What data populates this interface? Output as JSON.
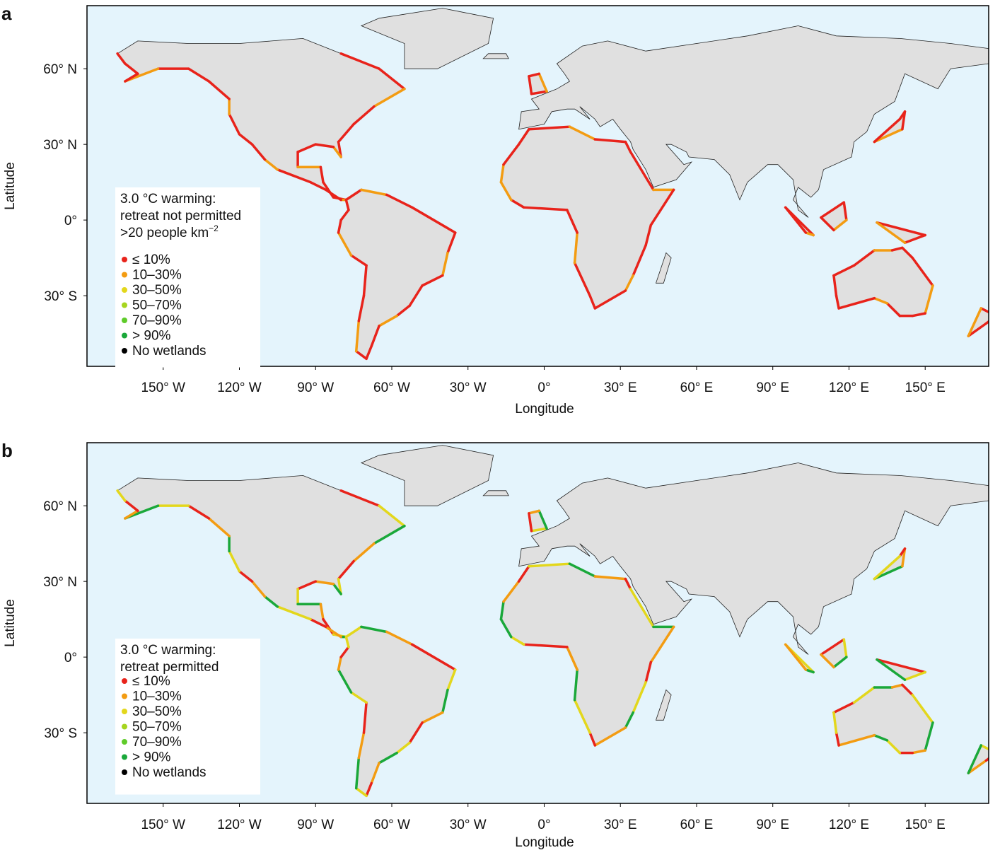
{
  "panels": [
    {
      "label": "a",
      "xlabel": "Longitude",
      "ylabel": "Latitude",
      "xlim": [
        -180,
        175
      ],
      "ylim": [
        -58,
        85
      ],
      "xticks": [
        {
          "value": -150,
          "label": "150° W"
        },
        {
          "value": -120,
          "label": "120° W"
        },
        {
          "value": -90,
          "label": "90° W"
        },
        {
          "value": -60,
          "label": "60° W"
        },
        {
          "value": -30,
          "label": "30° W"
        },
        {
          "value": 0,
          "label": "0°"
        },
        {
          "value": 30,
          "label": "30° E"
        },
        {
          "value": 60,
          "label": "60° E"
        },
        {
          "value": 90,
          "label": "90° E"
        },
        {
          "value": 120,
          "label": "120° E"
        },
        {
          "value": 150,
          "label": "150° E"
        }
      ],
      "yticks": [
        {
          "value": 60,
          "label": "60° N"
        },
        {
          "value": 30,
          "label": "30° N"
        },
        {
          "value": 0,
          "label": "0°"
        },
        {
          "value": -30,
          "label": "30° S"
        }
      ],
      "legend": {
        "title": [
          {
            "text": "3.0 °C warming:"
          },
          {
            "text": "retreat not permitted"
          },
          {
            "text": ">20 people km",
            "sup": "−2"
          }
        ],
        "items": [
          {
            "label": "≤ 10%",
            "color": "#e8231b"
          },
          {
            "label": "10–30%",
            "color": "#f39c12"
          },
          {
            "label": "30–50%",
            "color": "#e3d71c"
          },
          {
            "label": "50–70%",
            "color": "#a6d51f"
          },
          {
            "label": "70–90%",
            "color": "#5fcb2a"
          },
          {
            "label": "> 90%",
            "color": "#1aa83a"
          },
          {
            "label": "No wetlands",
            "color": "#000000"
          }
        ]
      }
    },
    {
      "label": "b",
      "xlabel": "Longitude",
      "ylabel": "Latitude",
      "xlim": [
        -180,
        175
      ],
      "ylim": [
        -58,
        85
      ],
      "xticks": [
        {
          "value": -150,
          "label": "150° W"
        },
        {
          "value": -120,
          "label": "120° W"
        },
        {
          "value": -90,
          "label": "90° W"
        },
        {
          "value": -60,
          "label": "60° W"
        },
        {
          "value": -30,
          "label": "30° W"
        },
        {
          "value": 0,
          "label": "0°"
        },
        {
          "value": 30,
          "label": "30° E"
        },
        {
          "value": 60,
          "label": "60° E"
        },
        {
          "value": 90,
          "label": "90° E"
        },
        {
          "value": 120,
          "label": "120° E"
        },
        {
          "value": 150,
          "label": "150° E"
        }
      ],
      "yticks": [
        {
          "value": 60,
          "label": "60° N"
        },
        {
          "value": 30,
          "label": "30° N"
        },
        {
          "value": 0,
          "label": "0°"
        },
        {
          "value": -30,
          "label": "30° S"
        }
      ],
      "legend": {
        "title": [
          {
            "text": "3.0 °C warming:"
          },
          {
            "text": "retreat permitted"
          }
        ],
        "items": [
          {
            "label": "≤ 10%",
            "color": "#e8231b"
          },
          {
            "label": "10–30%",
            "color": "#f39c12"
          },
          {
            "label": "30–50%",
            "color": "#e3d71c"
          },
          {
            "label": "50–70%",
            "color": "#a6d51f"
          },
          {
            "label": "70–90%",
            "color": "#5fcb2a"
          },
          {
            "label": "> 90%",
            "color": "#1aa83a"
          },
          {
            "label": "No wetlands",
            "color": "#000000"
          }
        ]
      }
    }
  ]
}
